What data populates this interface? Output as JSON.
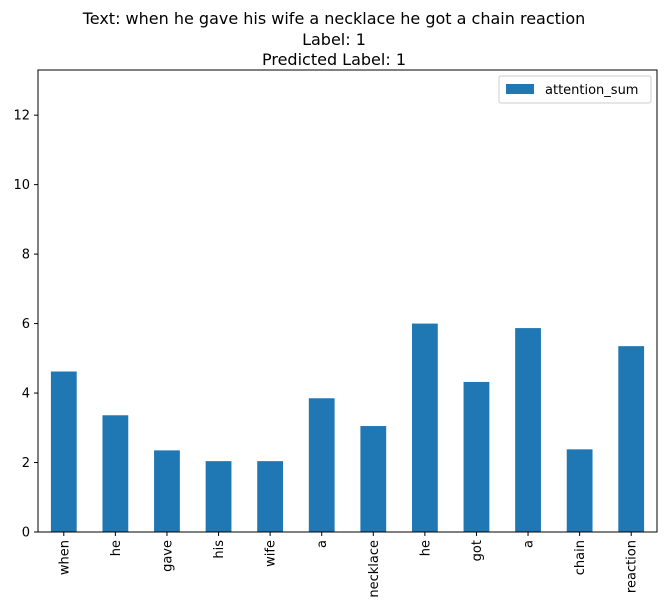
{
  "chart_data": {
    "type": "bar",
    "title_lines": [
      "Text: when he gave his wife a necklace he got a chain reaction",
      "Label: 1",
      "Predicted Label: 1"
    ],
    "categories": [
      "when",
      "he",
      "gave",
      "his",
      "wife",
      "a",
      "necklace",
      "he",
      "got",
      "a",
      "chain",
      "reaction"
    ],
    "series": [
      {
        "name": "attention_sum",
        "color": "#1f77b4",
        "values": [
          4.62,
          3.36,
          2.35,
          2.04,
          2.04,
          3.85,
          3.05,
          6.0,
          4.32,
          5.87,
          2.38,
          5.35
        ]
      }
    ],
    "xlabel": "",
    "ylabel": "",
    "ylim": [
      0,
      13.3
    ],
    "yticks": [
      0,
      2,
      4,
      6,
      8,
      10,
      12
    ],
    "grid": false,
    "legend_position": "top-right"
  }
}
